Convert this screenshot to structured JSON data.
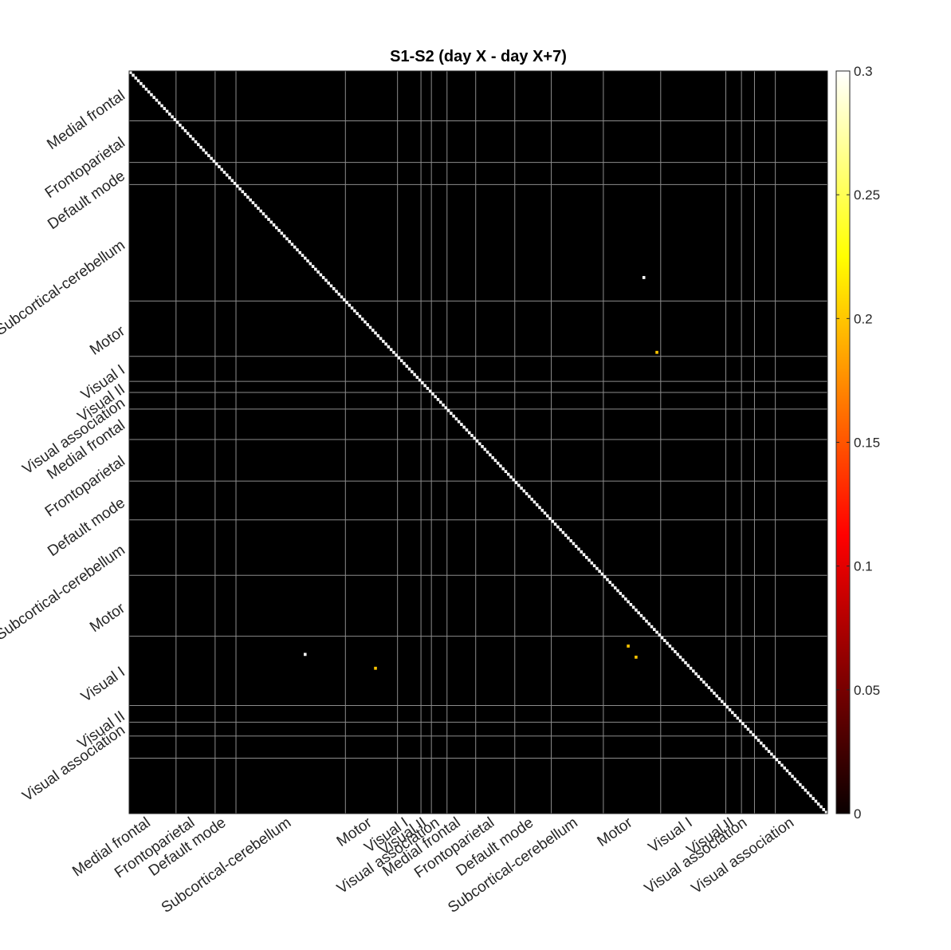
{
  "chart_data": {
    "type": "heatmap",
    "title": "S1-S2 (day X - day X+7)",
    "matrix_size": 268,
    "background_value": 0,
    "diagonal_value": 0.3,
    "colormap": "hot",
    "colorbar": {
      "min": 0,
      "max": 0.3,
      "ticks": [
        0,
        0.05,
        0.1,
        0.15,
        0.2,
        0.25,
        0.3
      ],
      "tick_labels": [
        "0",
        "0.05",
        "0.1",
        "0.15",
        "0.2",
        "0.25",
        "0.3"
      ]
    },
    "network_boundaries": [
      0,
      18,
      33,
      41,
      83,
      103,
      112,
      116,
      122,
      133,
      148,
      162,
      182,
      204,
      229,
      235,
      240,
      248
    ],
    "x_tick_labels": [
      {
        "label": "Medial frontal",
        "index": 8
      },
      {
        "label": "Frontoparietal",
        "index": 25
      },
      {
        "label": "Default mode",
        "index": 37
      },
      {
        "label": "Subcortical-cerebellum",
        "index": 62
      },
      {
        "label": "Motor",
        "index": 93
      },
      {
        "label": "Visual I",
        "index": 107
      },
      {
        "label": "Visual II",
        "index": 114
      },
      {
        "label": "Visual association",
        "index": 119
      },
      {
        "label": "Medial frontal",
        "index": 127
      },
      {
        "label": "Frontoparietal",
        "index": 140
      },
      {
        "label": "Default mode",
        "index": 155
      },
      {
        "label": "Subcortical-cerebellum",
        "index": 172
      },
      {
        "label": "Motor",
        "index": 193
      },
      {
        "label": "Visual I",
        "index": 216
      },
      {
        "label": "Visual II",
        "index": 232
      },
      {
        "label": "Visual association",
        "index": 237
      },
      {
        "label": "Visual association",
        "index": 255
      }
    ],
    "y_tick_labels": [
      {
        "label": "Medial frontal",
        "index": 8
      },
      {
        "label": "Frontoparietal",
        "index": 25
      },
      {
        "label": "Default mode",
        "index": 37
      },
      {
        "label": "Subcortical-cerebellum",
        "index": 62
      },
      {
        "label": "Motor",
        "index": 93
      },
      {
        "label": "Visual I",
        "index": 107
      },
      {
        "label": "Visual II",
        "index": 114
      },
      {
        "label": "Visual association",
        "index": 119
      },
      {
        "label": "Medial frontal",
        "index": 127
      },
      {
        "label": "Frontoparietal",
        "index": 140
      },
      {
        "label": "Default mode",
        "index": 155
      },
      {
        "label": "Subcortical-cerebellum",
        "index": 172
      },
      {
        "label": "Motor",
        "index": 193
      },
      {
        "label": "Visual I",
        "index": 216
      },
      {
        "label": "Visual II",
        "index": 232
      },
      {
        "label": "Visual association",
        "index": 237
      }
    ],
    "highlighted_cells": [
      {
        "row": 74,
        "col": 197,
        "value": 0.3
      },
      {
        "row": 101,
        "col": 202,
        "value": 0.2
      },
      {
        "row": 211,
        "col": 194,
        "value": 0.2
      },
      {
        "row": 207,
        "col": 191,
        "value": 0.2
      },
      {
        "row": 210,
        "col": 67,
        "value": 0.3
      },
      {
        "row": 215,
        "col": 94,
        "value": 0.2
      }
    ]
  }
}
